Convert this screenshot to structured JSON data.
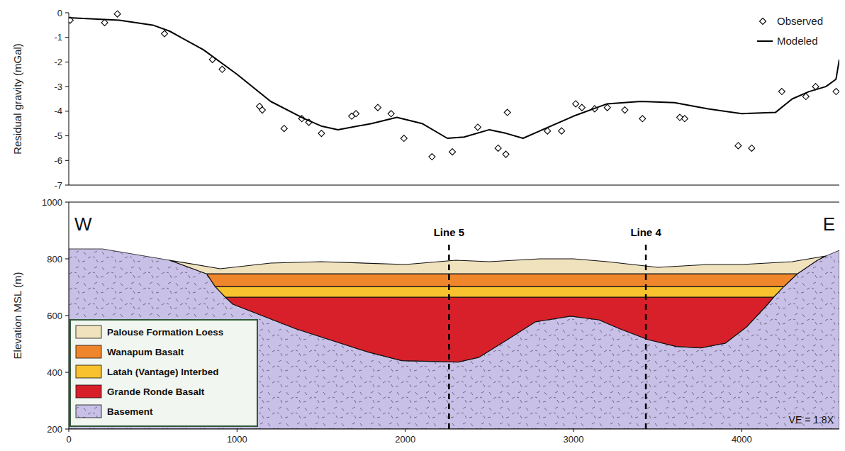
{
  "chart_data": [
    {
      "type": "scatter",
      "y_label": "Residual gravity (mGal)",
      "xlim": [
        0,
        4580
      ],
      "ylim": [
        -7,
        0
      ],
      "yticks": [
        0,
        -1,
        -2,
        -3,
        -4,
        -5,
        -6,
        -7
      ],
      "tick_labels": "y",
      "legend": "upper right",
      "series": [
        {
          "name": "Observed",
          "type": "scatter",
          "marker": "diamond",
          "color": "#000000",
          "x": [
            8,
            213,
            289,
            569,
            854,
            912,
            1134,
            1150,
            1280,
            1385,
            1427,
            1502,
            1682,
            1707,
            1837,
            1916,
            1992,
            2159,
            2280,
            2431,
            2552,
            2598,
            2607,
            2845,
            2929,
            3013,
            3050,
            3126,
            3201,
            3305,
            3410,
            3632,
            3661,
            3979,
            4059,
            4238,
            4381,
            4439,
            4561
          ],
          "values": [
            -0.3,
            -0.4,
            -0.05,
            -0.85,
            -1.9,
            -2.3,
            -3.8,
            -3.95,
            -4.7,
            -4.3,
            -4.45,
            -4.9,
            -4.2,
            -4.1,
            -3.85,
            -4.1,
            -5.1,
            -5.85,
            -5.65,
            -4.65,
            -5.5,
            -5.75,
            -4.05,
            -4.8,
            -4.8,
            -3.7,
            -3.85,
            -3.9,
            -3.85,
            -3.95,
            -4.3,
            -4.25,
            -4.3,
            -5.4,
            -5.5,
            -3.2,
            -3.4,
            -3.0,
            -3.2
          ]
        },
        {
          "name": "Modeled",
          "type": "line",
          "line_style": "solid",
          "color": "#000000",
          "x": [
            0,
            300,
            500,
            600,
            800,
            1000,
            1200,
            1400,
            1500,
            1600,
            1800,
            1950,
            2100,
            2250,
            2350,
            2500,
            2600,
            2700,
            2800,
            3000,
            3200,
            3400,
            3600,
            3800,
            4000,
            4200,
            4300,
            4400,
            4500,
            4560,
            4580
          ],
          "values": [
            -0.2,
            -0.3,
            -0.5,
            -0.75,
            -1.5,
            -2.5,
            -3.6,
            -4.3,
            -4.6,
            -4.75,
            -4.5,
            -4.25,
            -4.5,
            -5.1,
            -5.05,
            -4.75,
            -4.9,
            -5.1,
            -4.8,
            -4.2,
            -3.7,
            -3.6,
            -3.65,
            -3.9,
            -4.1,
            -4.05,
            -3.5,
            -3.2,
            -3.0,
            -2.7,
            -1.9
          ]
        }
      ]
    },
    {
      "type": "cross_section",
      "y_label": "Elevation MSL (m)",
      "xlim": [
        0,
        4580
      ],
      "xticks": [
        0,
        1000,
        2000,
        3000,
        4000
      ],
      "ylim": [
        200,
        1000
      ],
      "yticks": [
        200,
        400,
        600,
        800,
        1000
      ],
      "legend": "lower left",
      "annotations": [
        "W",
        "E",
        "VE = 1.8X"
      ],
      "lines": [
        {
          "text": "Line 5",
          "x": 2260,
          "line_style": "dashed"
        },
        {
          "text": "Line 4",
          "x": 3430,
          "line_style": "dashed"
        }
      ],
      "series": [
        {
          "name": "Palouse Formation Loess",
          "color": "#efe2bd",
          "x": [
            600,
            900,
            1200,
            1500,
            2000,
            2300,
            2500,
            2800,
            3000,
            3200,
            3500,
            3800,
            4000,
            4300,
            4500,
            4450,
            4330,
            820
          ],
          "values": [
            795,
            765,
            785,
            790,
            780,
            795,
            790,
            800,
            800,
            790,
            770,
            780,
            780,
            790,
            810,
            795,
            747,
            747
          ]
        },
        {
          "name": "Wanapum Basalt",
          "color": "#f0862c",
          "x": [
            820,
            870,
            4250,
            4330
          ],
          "values": [
            747,
            702,
            702,
            747
          ]
        },
        {
          "name": "Latah (Vantage) Interbed",
          "color": "#f7c22e",
          "x": [
            870,
            930,
            4190,
            4250
          ],
          "values": [
            702,
            665,
            665,
            702
          ]
        },
        {
          "name": "Grande Ronde Basalt",
          "color": "#d8202a",
          "x": [
            930,
            975,
            1351,
            1770,
            1979,
            2314,
            2439,
            2607,
            2774,
            2983,
            3150,
            3276,
            3444,
            3611,
            3757,
            3904,
            4029,
            4155,
            4190
          ],
          "values": [
            665,
            640,
            553,
            473,
            441,
            436,
            453,
            515,
            578,
            598,
            585,
            553,
            515,
            491,
            486,
            503,
            560,
            640,
            665
          ]
        },
        {
          "name": "Basement",
          "color": "#c8c0e6",
          "x": [
            0,
            200,
            600,
            820,
            870,
            930,
            975,
            1351,
            1770,
            1979,
            2314,
            2439,
            2607,
            2774,
            2983,
            3150,
            3276,
            3444,
            3611,
            3757,
            3904,
            4029,
            4155,
            4190,
            4250,
            4330,
            4450,
            4500,
            4580,
            4580,
            0
          ],
          "values": [
            835,
            835,
            795,
            747,
            702,
            665,
            640,
            553,
            473,
            441,
            436,
            453,
            515,
            578,
            598,
            585,
            553,
            515,
            491,
            486,
            503,
            560,
            640,
            665,
            702,
            747,
            795,
            810,
            830,
            200,
            200
          ]
        }
      ]
    }
  ]
}
